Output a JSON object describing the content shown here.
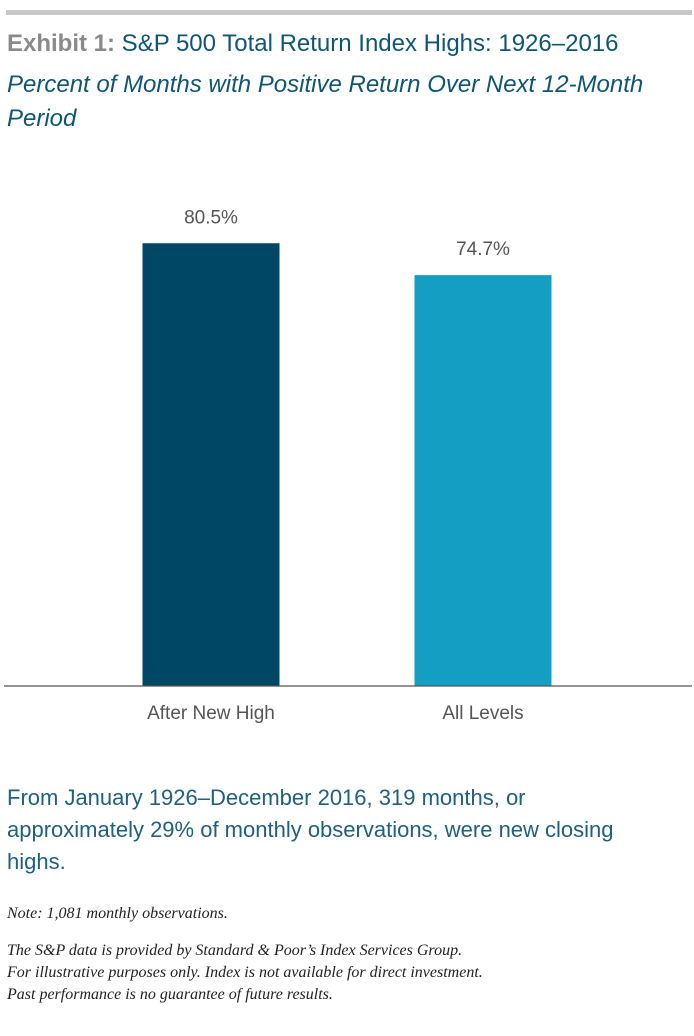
{
  "header": {
    "title_prefix": "Exhibit 1:",
    "title_main": " S&P 500 Total Return Index Highs: 1926–2016",
    "subtitle": "Percent of Months with Positive Return Over Next 12-Month Period"
  },
  "chart_data": {
    "type": "bar",
    "categories": [
      "After New High",
      "All Levels"
    ],
    "values": [
      80.5,
      74.7
    ],
    "value_labels": [
      "80.5%",
      "74.7%"
    ],
    "colors": [
      "#004766",
      "#149ec4"
    ],
    "title": "S&P 500 Total Return Index Highs: 1926–2016",
    "subtitle": "Percent of Months with Positive Return Over Next 12-Month Period",
    "xlabel": "",
    "ylabel": "",
    "grid": false
  },
  "callout": "From January 1926–December 2016, 319 months, or approximately 29% of monthly observations, were new closing highs.",
  "note": "Note: 1,081 monthly observations.",
  "disclaimer": {
    "line1": "The S&P data is provided by Standard & Poor’s Index Services Group.",
    "line2": "For illustrative purposes only. Index is not available for direct investment.",
    "line3": "Past performance is no guarantee of future results."
  }
}
